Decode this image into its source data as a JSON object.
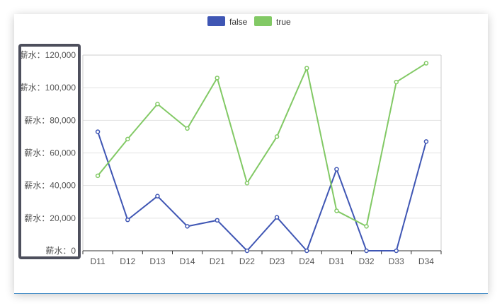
{
  "chart_data": {
    "type": "line",
    "categories": [
      "D11",
      "D12",
      "D13",
      "D14",
      "D21",
      "D22",
      "D23",
      "D24",
      "D31",
      "D32",
      "D33",
      "D34"
    ],
    "series": [
      {
        "name": "false",
        "color": "#3f56b4",
        "values": [
          73000,
          19000,
          33500,
          15000,
          18700,
          0,
          20500,
          0,
          50000,
          0,
          0,
          67000
        ]
      },
      {
        "name": "true",
        "color": "#82c965",
        "values": [
          46000,
          68500,
          90000,
          75000,
          106000,
          41500,
          70000,
          112000,
          24500,
          15000,
          103500,
          115000
        ]
      }
    ],
    "ylim": [
      0,
      120000
    ],
    "y_ticks": [
      "薪水：0",
      "薪水：20,000",
      "薪水：40,000",
      "薪水：60,000",
      "薪水：80,000",
      "薪水：100,000",
      "薪水：120,000"
    ],
    "y_tick_values": [
      0,
      20000,
      40000,
      60000,
      80000,
      100000,
      120000
    ],
    "grid": true,
    "legend": "top-center",
    "highlight_color": "#4d4f5c"
  }
}
